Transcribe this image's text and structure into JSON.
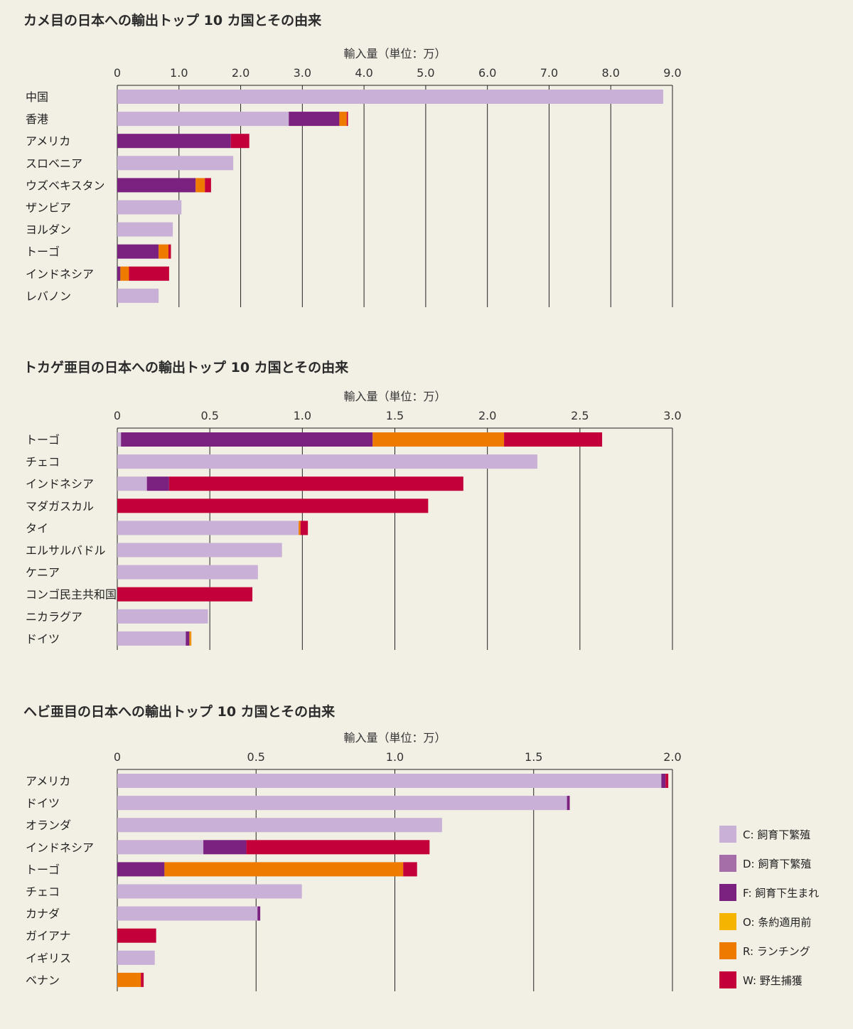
{
  "colors": {
    "C": "#c9b0d6",
    "D": "#a56ea9",
    "F": "#7b2280",
    "O": "#f5b400",
    "R": "#ef7a00",
    "W": "#c4003a"
  },
  "legend": [
    {
      "key": "C",
      "label": "C: 飼育下繁殖"
    },
    {
      "key": "D",
      "label": "D: 飼育下繁殖"
    },
    {
      "key": "F",
      "label": "F: 飼育下生まれ"
    },
    {
      "key": "O",
      "label": "O: 条約適用前"
    },
    {
      "key": "R",
      "label": "R: ランチング"
    },
    {
      "key": "W",
      "label": "W: 野生捕獲"
    }
  ],
  "chart_data": [
    {
      "type": "bar",
      "title": "カメ目の日本への輸出トップ 10 カ国とその由来",
      "xlabel": "輸入量（単位：万）",
      "xlim": [
        0,
        9
      ],
      "ticks": [
        "0",
        "1.0",
        "2.0",
        "3.0",
        "4.0",
        "5.0",
        "6.0",
        "7.0",
        "8.0",
        "9.0"
      ],
      "tick_values": [
        0,
        1,
        2,
        3,
        4,
        5,
        6,
        7,
        8,
        9
      ],
      "categories": [
        "中国",
        "香港",
        "アメリカ",
        "スロベニア",
        "ウズベキスタン",
        "ザンビア",
        "ヨルダン",
        "トーゴ",
        "インドネシア",
        "レバノン"
      ],
      "series": [
        {
          "key": "C",
          "values": [
            8.85,
            2.78,
            0,
            1.88,
            0,
            1.04,
            0.9,
            0,
            0,
            0.67
          ]
        },
        {
          "key": "D",
          "values": [
            0,
            0,
            0,
            0,
            0,
            0,
            0,
            0,
            0,
            0
          ]
        },
        {
          "key": "F",
          "values": [
            0,
            0.82,
            1.84,
            0,
            1.27,
            0,
            0,
            0.67,
            0.05,
            0
          ]
        },
        {
          "key": "O",
          "values": [
            0,
            0,
            0,
            0,
            0,
            0,
            0,
            0,
            0,
            0
          ]
        },
        {
          "key": "R",
          "values": [
            0,
            0.12,
            0,
            0,
            0.15,
            0,
            0,
            0.16,
            0.14,
            0
          ]
        },
        {
          "key": "W",
          "values": [
            0,
            0.02,
            0.3,
            0,
            0.1,
            0,
            0,
            0.04,
            0.65,
            0
          ]
        }
      ]
    },
    {
      "type": "bar",
      "title": "トカゲ亜目の日本への輸出トップ 10 カ国とその由来",
      "xlabel": "輸入量（単位：万）",
      "xlim": [
        0,
        3
      ],
      "ticks": [
        "0",
        "0.5",
        "1.0",
        "1.5",
        "2.0",
        "2.5",
        "3.0"
      ],
      "tick_values": [
        0,
        0.5,
        1,
        1.5,
        2,
        2.5,
        3
      ],
      "categories": [
        "トーゴ",
        "チェコ",
        "インドネシア",
        "マダガスカル",
        "タイ",
        "エルサルバドル",
        "ケニア",
        "コンゴ民主共和国",
        "ニカラグア",
        "ドイツ"
      ],
      "series": [
        {
          "key": "C",
          "values": [
            0.02,
            2.27,
            0.16,
            0,
            0.98,
            0.89,
            0.76,
            0,
            0.49,
            0.37
          ]
        },
        {
          "key": "D",
          "values": [
            0,
            0,
            0,
            0,
            0,
            0,
            0,
            0,
            0,
            0
          ]
        },
        {
          "key": "F",
          "values": [
            1.36,
            0,
            0.12,
            0,
            0,
            0,
            0,
            0,
            0,
            0.02
          ]
        },
        {
          "key": "O",
          "values": [
            0,
            0,
            0,
            0,
            0,
            0,
            0,
            0,
            0,
            0.005
          ]
        },
        {
          "key": "R",
          "values": [
            0.71,
            0,
            0,
            0,
            0.01,
            0,
            0,
            0,
            0,
            0.005
          ]
        },
        {
          "key": "W",
          "values": [
            0.53,
            0,
            1.59,
            1.68,
            0.04,
            0,
            0,
            0.73,
            0,
            0
          ]
        }
      ]
    },
    {
      "type": "bar",
      "title": "ヘビ亜目の日本への輸出トップ 10 カ国とその由来",
      "xlabel": "輸入量（単位：万）",
      "xlim": [
        0,
        2
      ],
      "ticks": [
        "0",
        "0.5",
        "1.0",
        "1.5",
        "2.0"
      ],
      "tick_values": [
        0,
        0.5,
        1,
        1.5,
        2
      ],
      "categories": [
        "アメリカ",
        "ドイツ",
        "オランダ",
        "インドネシア",
        "トーゴ",
        "チェコ",
        "カナダ",
        "ガイアナ",
        "イギリス",
        "ベナン"
      ],
      "series": [
        {
          "key": "C",
          "values": [
            1.96,
            1.62,
            1.17,
            0.31,
            0,
            0.665,
            0.505,
            0,
            0.135,
            0
          ]
        },
        {
          "key": "D",
          "values": [
            0,
            0,
            0,
            0,
            0,
            0,
            0,
            0,
            0,
            0
          ]
        },
        {
          "key": "F",
          "values": [
            0.015,
            0.01,
            0,
            0.155,
            0.17,
            0,
            0.01,
            0,
            0,
            0
          ]
        },
        {
          "key": "O",
          "values": [
            0,
            0,
            0,
            0,
            0,
            0,
            0,
            0,
            0,
            0
          ]
        },
        {
          "key": "R",
          "values": [
            0,
            0,
            0,
            0,
            0.86,
            0,
            0,
            0,
            0,
            0.085
          ]
        },
        {
          "key": "W",
          "values": [
            0.01,
            0,
            0,
            0.66,
            0.05,
            0,
            0,
            0.14,
            0,
            0.01
          ]
        }
      ]
    }
  ]
}
